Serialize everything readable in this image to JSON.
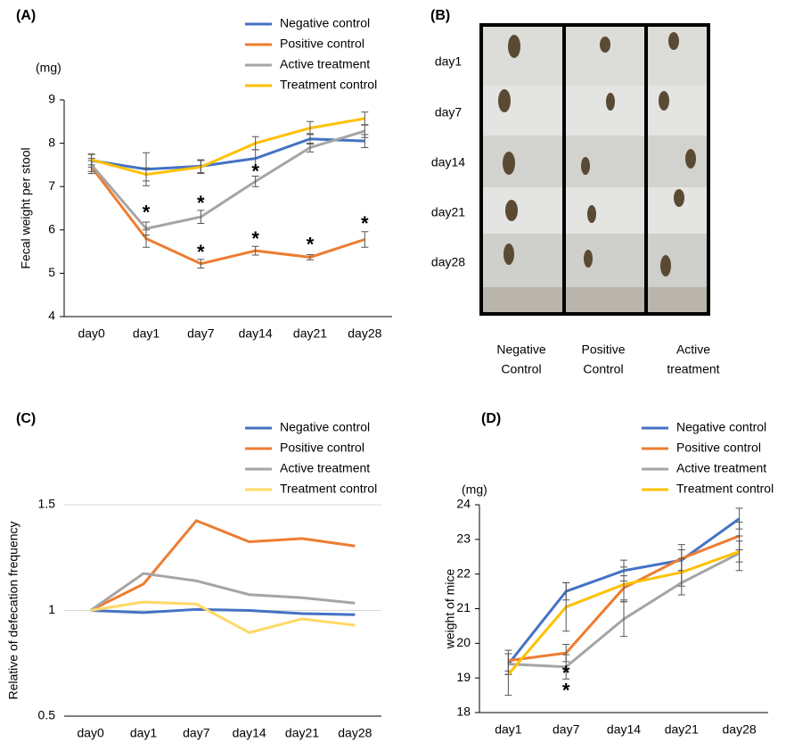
{
  "chart_data": [
    {
      "type": "line",
      "panel_label": "(A)",
      "unit": "(mg)",
      "y_label": "Fecal weight per stool",
      "legend": "upper right",
      "categories": [
        "day0",
        "day1",
        "day7",
        "day14",
        "day21",
        "day28"
      ],
      "ylim": [
        4,
        9
      ],
      "yticks": [
        4,
        5,
        6,
        7,
        8,
        9
      ],
      "grid": false,
      "series": [
        {
          "name": "Negative control",
          "color": "#4472c4",
          "values": [
            7.6,
            7.4,
            7.47,
            7.65,
            8.1,
            8.05
          ],
          "errors": [
            0.15,
            0.38,
            0.15,
            0.2,
            0.12,
            0.15
          ]
        },
        {
          "name": "Positive control",
          "color": "#ed7d31",
          "values": [
            7.45,
            5.8,
            5.22,
            5.52,
            5.37,
            5.78
          ],
          "errors": [
            0.15,
            0.2,
            0.1,
            0.1,
            0.06,
            0.18
          ]
        },
        {
          "name": "Active treatment",
          "color": "#a5a5a5",
          "values": [
            7.5,
            6.03,
            6.3,
            7.12,
            7.9,
            8.28
          ],
          "errors": [
            0.15,
            0.15,
            0.15,
            0.12,
            0.1,
            0.15
          ]
        },
        {
          "name": "Treatment control",
          "color": "#ffc000",
          "values": [
            7.62,
            7.28,
            7.45,
            8.0,
            8.35,
            8.57
          ],
          "errors": [
            0.12,
            0.15,
            0.15,
            0.15,
            0.15,
            0.15
          ]
        }
      ],
      "annotations": [
        {
          "text": "*",
          "x": "day1",
          "y": 6.45
        },
        {
          "text": "*",
          "x": "day7",
          "y": 6.67
        },
        {
          "text": "*",
          "x": "day7",
          "y": 5.54
        },
        {
          "text": "*",
          "x": "day14",
          "y": 7.4
        },
        {
          "text": "*",
          "x": "day14",
          "y": 5.85
        },
        {
          "text": "*",
          "x": "day21",
          "y": 5.71
        },
        {
          "text": "*",
          "x": "day28",
          "y": 6.2
        }
      ]
    },
    {
      "type": "line",
      "panel_label": "(C)",
      "y_label": "Relative of defecation frequency",
      "legend": "upper right",
      "categories": [
        "day0",
        "day1",
        "day7",
        "day14",
        "day21",
        "day28"
      ],
      "ylim": [
        0.5,
        1.5
      ],
      "yticks": [
        0.5,
        1,
        1.5
      ],
      "grid": true,
      "series": [
        {
          "name": "Negative control",
          "color": "#4472c4",
          "values": [
            1,
            0.99,
            1.005,
            1.0,
            0.985,
            0.98
          ]
        },
        {
          "name": "Positive control",
          "color": "#ed7d31",
          "values": [
            1,
            1.125,
            1.425,
            1.325,
            1.34,
            1.305
          ]
        },
        {
          "name": "Active treatment",
          "color": "#a5a5a5",
          "values": [
            1,
            1.175,
            1.14,
            1.075,
            1.06,
            1.035
          ]
        },
        {
          "name": "Treatment control",
          "color": "#ffd966",
          "values": [
            1,
            1.04,
            1.03,
            0.895,
            0.96,
            0.93
          ]
        }
      ]
    },
    {
      "type": "line",
      "panel_label": "(D)",
      "unit": "(mg)",
      "y_label": "weight of mice",
      "legend": "upper right",
      "categories": [
        "day1",
        "day7",
        "day14",
        "day21",
        "day28"
      ],
      "ylim": [
        18,
        24
      ],
      "yticks": [
        18,
        19,
        20,
        21,
        22,
        23,
        24
      ],
      "grid": false,
      "series": [
        {
          "name": "Negative control",
          "color": "#4472c4",
          "values": [
            19.4,
            21.5,
            22.1,
            22.4,
            23.6
          ],
          "errors": [
            0.3,
            0.25,
            0.3,
            0.3,
            0.3
          ]
        },
        {
          "name": "Positive control",
          "color": "#ed7d31",
          "values": [
            19.5,
            19.72,
            21.6,
            22.45,
            23.1
          ],
          "errors": [
            0.3,
            0.25,
            0.35,
            0.4,
            0.4
          ]
        },
        {
          "name": "Active treatment",
          "color": "#a5a5a5",
          "values": [
            19.4,
            19.32,
            20.7,
            21.75,
            22.6
          ],
          "errors": [
            0.3,
            0.35,
            0.5,
            0.35,
            0.5
          ]
        },
        {
          "name": "Treatment control",
          "color": "#ffc000",
          "values": [
            19.1,
            21.05,
            21.7,
            22.05,
            22.65
          ],
          "errors": [
            0.6,
            0.7,
            0.5,
            0.4,
            0.3
          ]
        }
      ],
      "annotations": [
        {
          "text": "*",
          "x": "day7",
          "y": 19.21
        },
        {
          "text": "*",
          "x": "day7",
          "y": 18.7
        }
      ]
    }
  ],
  "image_panel": {
    "panel_label": "(B)",
    "row_labels": [
      "day1",
      "day7",
      "day14",
      "day21",
      "day28"
    ],
    "column_labels": [
      [
        "Negative",
        "Control"
      ],
      [
        "Positive",
        "Control"
      ],
      [
        "Active",
        "treatment"
      ]
    ]
  }
}
